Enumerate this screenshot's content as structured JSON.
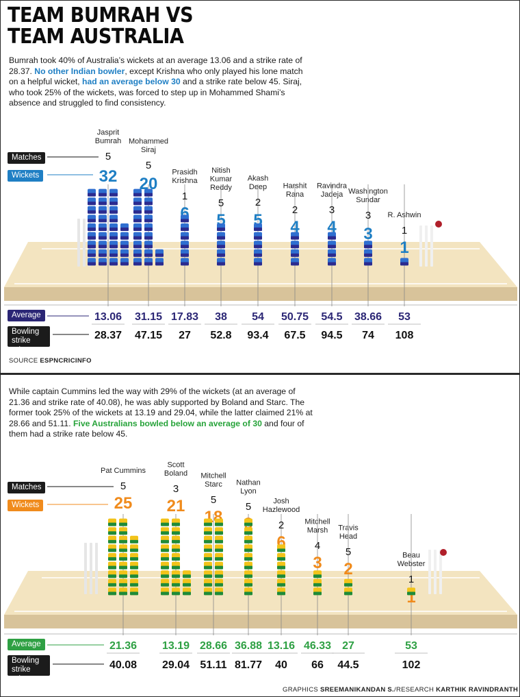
{
  "title": [
    "TEAM BUMRAH VS",
    "TEAM AUSTRALIA"
  ],
  "india": {
    "intro": [
      {
        "text": "Bumrah took 40% of Australia’s wickets at an average 13.06 and a strike rate of 28.37. ",
        "hl": false
      },
      {
        "text": "No other Indian bowler",
        "hl": true
      },
      {
        "text": ", except Krishna who only played his lone match on a helpful wicket, ",
        "hl": false
      },
      {
        "text": "had an average below 30",
        "hl": true
      },
      {
        "text": " and a strike rate below 45. Siraj, who took 25% of the wickets, was forced to step up in Mohammed Shami’s absence and struggled to find consistency.",
        "hl": false
      }
    ],
    "labels": {
      "matches": "Matches",
      "wickets": "Wickets",
      "average": "Average",
      "strike_rate": "Bowling strike rate"
    },
    "source_prefix": "SOURCE ",
    "source": "ESPNCRICINFO",
    "colors": {
      "wicket_value": "#1f7fc4",
      "average_value": "#2b2675",
      "block_top": "#2f6fd0",
      "block_bottom": "#2b2b8f"
    }
  },
  "australia": {
    "intro": [
      {
        "text": "While captain Cummins led the way with 29% of the wickets (at an average of 21.36 and strike rate of 40.08), he was ably supported by Boland and Starc. The former took 25% of the wickets at 13.19 and 29.04, while the latter claimed 21% at 28.66 and 51.11. ",
        "hl": false
      },
      {
        "text": "Five Australians bowled below an average of 30",
        "hl": true
      },
      {
        "text": " and four of them had a strike rate below 45.",
        "hl": false
      }
    ],
    "labels": {
      "matches": "Matches",
      "wickets": "Wickets",
      "average": "Average",
      "strike_rate": "Bowling strike rate"
    },
    "credit": [
      {
        "text": "GRAPHICS ",
        "bold": false
      },
      {
        "text": "SREEMANIKANDAN S.",
        "bold": true
      },
      {
        "text": "/RESEARCH ",
        "bold": false
      },
      {
        "text": "KARTHIK RAVINDRANTH",
        "bold": true
      }
    ],
    "colors": {
      "wicket_value": "#f08b1c",
      "average_value": "#2ea043",
      "block_top": "#f2c31a",
      "block_bottom": "#1e8b3a"
    }
  },
  "chart_data": [
    {
      "type": "table",
      "team": "India",
      "bowlers": [
        "Jasprit Bumrah",
        "Mohammed Siraj",
        "Prasidh Krishna",
        "Nitish Kumar Reddy",
        "Akash Deep",
        "Harshit Rana",
        "Ravindra Jadeja",
        "Washington Sundar",
        "R. Ashwin"
      ],
      "name_lines": [
        [
          "Jasprit",
          "Bumrah"
        ],
        [
          "Mohammed",
          "Siraj"
        ],
        [
          "Prasidh",
          "Krishna"
        ],
        [
          "Nitish",
          "Kumar",
          "Reddy"
        ],
        [
          "Akash",
          "Deep"
        ],
        [
          "Harshit",
          "Rana"
        ],
        [
          "Ravindra",
          "Jadeja"
        ],
        [
          "Washington",
          "Sundar"
        ],
        [
          "R. Ashwin"
        ]
      ],
      "matches": [
        5,
        5,
        1,
        5,
        2,
        2,
        3,
        3,
        1
      ],
      "wickets": [
        32,
        20,
        6,
        5,
        5,
        4,
        4,
        3,
        1
      ],
      "average": [
        "13.06",
        "31.15",
        "17.83",
        "38",
        "54",
        "50.75",
        "54.5",
        "38.66",
        "53"
      ],
      "strike_rate": [
        "28.37",
        "47.15",
        "27",
        "52.8",
        "93.4",
        "67.5",
        "94.5",
        "74",
        "108"
      ]
    },
    {
      "type": "table",
      "team": "Australia",
      "bowlers": [
        "Pat Cummins",
        "Scott Boland",
        "Mitchell Starc",
        "Nathan Lyon",
        "Josh Hazlewood",
        "Mitchell Marsh",
        "Travis Head",
        "Beau Webster"
      ],
      "name_lines": [
        [
          "Pat Cummins"
        ],
        [
          "Scott",
          "Boland"
        ],
        [
          "Mitchell",
          "Starc"
        ],
        [
          "Nathan",
          "Lyon"
        ],
        [
          "Josh",
          "Hazlewood"
        ],
        [
          "Mitchell",
          "Marsh"
        ],
        [
          "Travis",
          "Head"
        ],
        [
          "Beau",
          "Webster"
        ]
      ],
      "matches": [
        5,
        3,
        5,
        5,
        2,
        4,
        5,
        1
      ],
      "wickets": [
        25,
        21,
        18,
        9,
        6,
        3,
        2,
        1
      ],
      "average": [
        "21.36",
        "13.19",
        "28.66",
        "36.88",
        "13.16",
        "46.33",
        "27",
        "53"
      ],
      "strike_rate": [
        "40.08",
        "29.04",
        "51.11",
        "81.77",
        "40",
        "66",
        "44.5",
        "102"
      ]
    }
  ]
}
